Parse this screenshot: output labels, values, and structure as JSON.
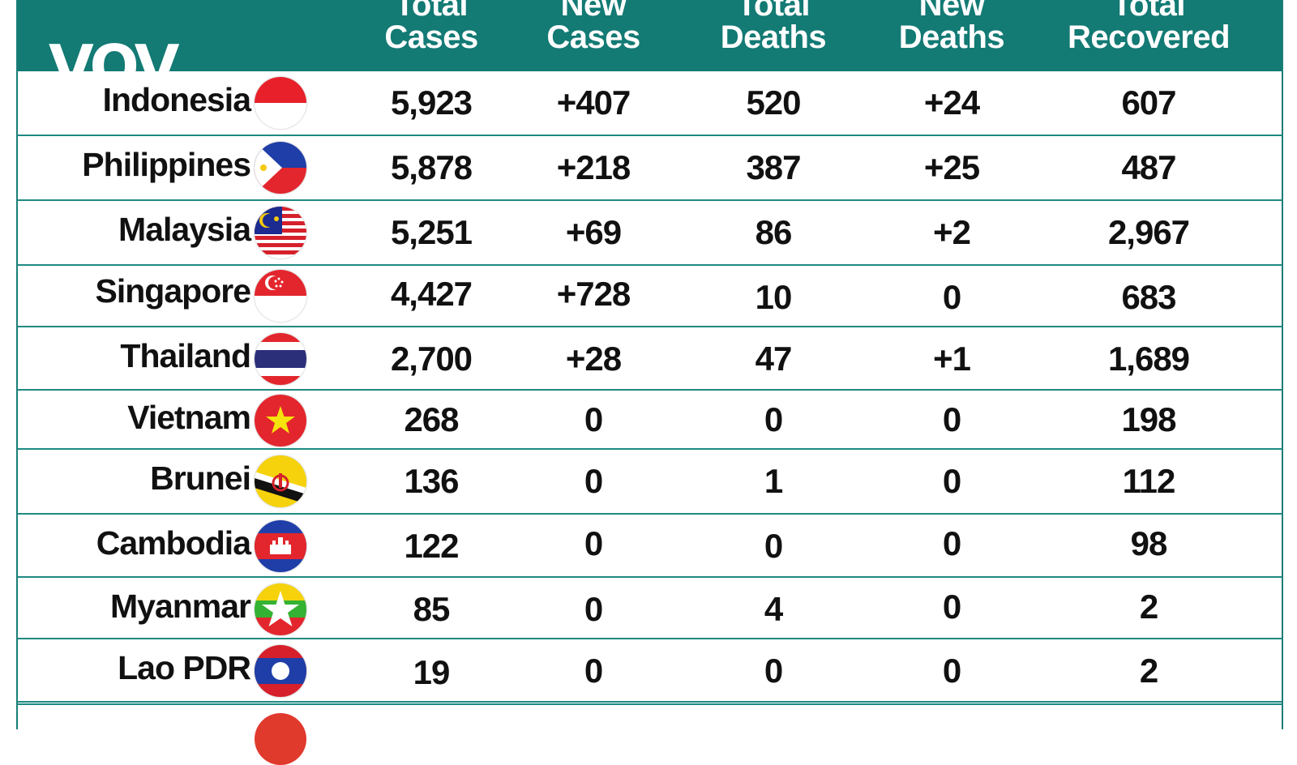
{
  "header": {
    "logo": "VOV",
    "columns": [
      [
        "Total",
        "Cases"
      ],
      [
        "New",
        "Cases"
      ],
      [
        "Total",
        "Deaths"
      ],
      [
        "New",
        "Deaths"
      ],
      [
        "Total",
        "Recovered"
      ]
    ]
  },
  "colors": {
    "header_bg": "#137a74",
    "row_divider": "#1f8a81",
    "text": "#111111"
  },
  "rows": [
    {
      "country": "Indonesia",
      "flag": "indonesia-flag-icon",
      "values": [
        "5,923",
        "+407",
        "520",
        "+24",
        "607"
      ]
    },
    {
      "country": "Philippines",
      "flag": "philippines-flag-icon",
      "values": [
        "5,878",
        "+218",
        "387",
        "+25",
        "487"
      ]
    },
    {
      "country": "Malaysia",
      "flag": "malaysia-flag-icon",
      "values": [
        "5,251",
        "+69",
        "86",
        "+2",
        "2,967"
      ]
    },
    {
      "country": "Singapore",
      "flag": "singapore-flag-icon",
      "values": [
        "4,427",
        "+728",
        "10",
        "0",
        "683"
      ]
    },
    {
      "country": "Thailand",
      "flag": "thailand-flag-icon",
      "values": [
        "2,700",
        "+28",
        "47",
        "+1",
        "1,689"
      ]
    },
    {
      "country": "Vietnam",
      "flag": "vietnam-flag-icon",
      "values": [
        "268",
        "0",
        "0",
        "0",
        "198"
      ]
    },
    {
      "country": "Brunei",
      "flag": "brunei-flag-icon",
      "values": [
        "136",
        "0",
        "1",
        "0",
        "112"
      ]
    },
    {
      "country": "Cambodia",
      "flag": "cambodia-flag-icon",
      "values": [
        "122",
        "0",
        "0",
        "0",
        "98"
      ]
    },
    {
      "country": "Myanmar",
      "flag": "myanmar-flag-icon",
      "values": [
        "85",
        "0",
        "4",
        "0",
        "2"
      ]
    },
    {
      "country": "Lao PDR",
      "flag": "laos-flag-icon",
      "values": [
        "19",
        "0",
        "0",
        "0",
        "2"
      ]
    }
  ]
}
